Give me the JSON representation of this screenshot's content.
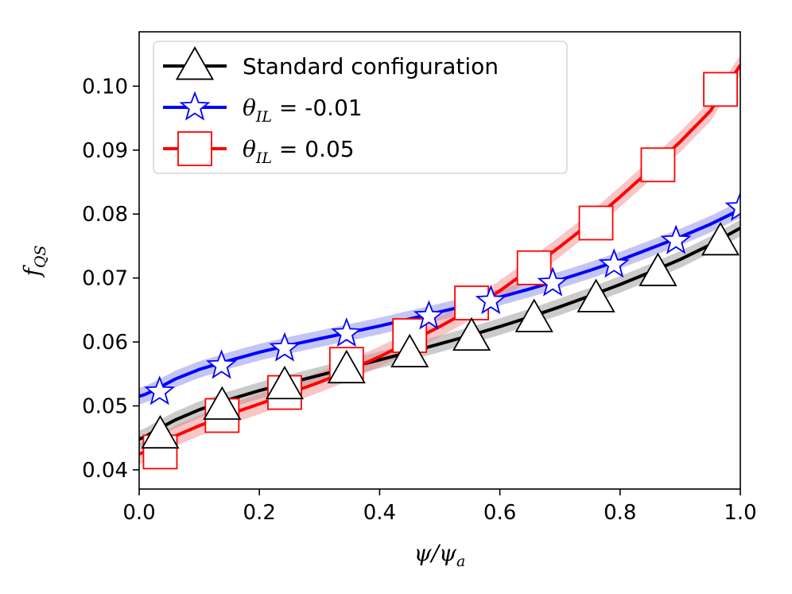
{
  "chart_data": {
    "type": "line",
    "title": "",
    "xlabel": "ψ/ψa",
    "xlabel_parts": {
      "main": "ψ/ψ",
      "sub": "a"
    },
    "ylabel": "fQS",
    "ylabel_parts": {
      "main": "f",
      "sub": "QS"
    },
    "xlim": [
      0.0,
      1.0
    ],
    "ylim": [
      0.037,
      0.1085
    ],
    "xticks": [
      0.0,
      0.2,
      0.4,
      0.6,
      0.8,
      1.0
    ],
    "xtick_labels": [
      "0.0",
      "0.2",
      "0.4",
      "0.6",
      "0.8",
      "1.0"
    ],
    "yticks": [
      0.04,
      0.05,
      0.06,
      0.07,
      0.08,
      0.09,
      0.1
    ],
    "ytick_labels": [
      "0.04",
      "0.05",
      "0.06",
      "0.07",
      "0.08",
      "0.09",
      "0.10"
    ],
    "grid": false,
    "legend_position": "top-left",
    "series": [
      {
        "name": "Standard configuration",
        "legend_label": "Standard configuration",
        "color": "#000000",
        "band_color": "#8c8c8c",
        "marker": "triangle",
        "x": [
          0.0,
          0.01,
          0.03,
          0.06,
          0.1,
          0.15,
          0.2,
          0.25,
          0.3,
          0.35,
          0.4,
          0.45,
          0.5,
          0.55,
          0.6,
          0.65,
          0.7,
          0.75,
          0.8,
          0.85,
          0.9,
          0.95,
          1.0
        ],
        "y": [
          0.0448,
          0.0452,
          0.0463,
          0.0478,
          0.0494,
          0.051,
          0.0524,
          0.0536,
          0.0548,
          0.056,
          0.0572,
          0.0584,
          0.0597,
          0.061,
          0.0624,
          0.0639,
          0.0655,
          0.0672,
          0.069,
          0.0709,
          0.0729,
          0.0752,
          0.0778
        ],
        "band": 0.0013,
        "marker_x": [
          0.035,
          0.138,
          0.242,
          0.345,
          0.45,
          0.553,
          0.657,
          0.76,
          0.863,
          0.967
        ],
        "marker_y": [
          0.0455,
          0.05,
          0.0532,
          0.0557,
          0.0582,
          0.0608,
          0.0637,
          0.0668,
          0.0709,
          0.0757
        ]
      },
      {
        "name": "θIL = -0.01",
        "legend_label": {
          "main": "θ",
          "sub": "IL",
          "rest": " = -0.01"
        },
        "color": "#0000ff",
        "band_color": "#7f7fe6",
        "marker": "star",
        "x": [
          0.0,
          0.01,
          0.03,
          0.06,
          0.1,
          0.15,
          0.2,
          0.25,
          0.3,
          0.35,
          0.4,
          0.45,
          0.5,
          0.55,
          0.6,
          0.65,
          0.7,
          0.75,
          0.8,
          0.85,
          0.9,
          0.95,
          1.0
        ],
        "y": [
          0.0515,
          0.0518,
          0.0527,
          0.0542,
          0.0557,
          0.0571,
          0.0584,
          0.0595,
          0.0605,
          0.0615,
          0.0625,
          0.0636,
          0.0647,
          0.0658,
          0.067,
          0.0683,
          0.0697,
          0.0712,
          0.0728,
          0.0746,
          0.0764,
          0.0784,
          0.0807
        ],
        "band": 0.0013,
        "marker_x": [
          0.034,
          0.137,
          0.242,
          0.345,
          0.482,
          0.585,
          0.688,
          0.79,
          0.893,
          1.0
        ],
        "marker_y": [
          0.0522,
          0.0563,
          0.059,
          0.0613,
          0.064,
          0.0664,
          0.0692,
          0.0721,
          0.0758,
          0.081
        ]
      },
      {
        "name": "θIL = 0.05",
        "legend_label": {
          "main": "θ",
          "sub": "IL",
          "rest": " = 0.05"
        },
        "color": "#ff0000",
        "band_color": "#f08080",
        "marker": "square",
        "x": [
          0.0,
          0.01,
          0.03,
          0.06,
          0.1,
          0.15,
          0.2,
          0.25,
          0.3,
          0.35,
          0.4,
          0.45,
          0.5,
          0.55,
          0.6,
          0.65,
          0.7,
          0.75,
          0.8,
          0.85,
          0.9,
          0.95,
          1.0
        ],
        "y": [
          0.0425,
          0.0428,
          0.0437,
          0.0453,
          0.0469,
          0.0487,
          0.0503,
          0.052,
          0.0537,
          0.0556,
          0.0577,
          0.06,
          0.0624,
          0.065,
          0.068,
          0.0714,
          0.0749,
          0.0786,
          0.0827,
          0.0869,
          0.0913,
          0.0961,
          0.1033
        ],
        "band": 0.0016,
        "marker_x": [
          0.035,
          0.138,
          0.242,
          0.345,
          0.45,
          0.553,
          0.657,
          0.76,
          0.863,
          0.967
        ],
        "marker_y": [
          0.0428,
          0.0485,
          0.0521,
          0.0565,
          0.061,
          0.0661,
          0.0716,
          0.0786,
          0.0877,
          0.0995
        ]
      }
    ]
  }
}
